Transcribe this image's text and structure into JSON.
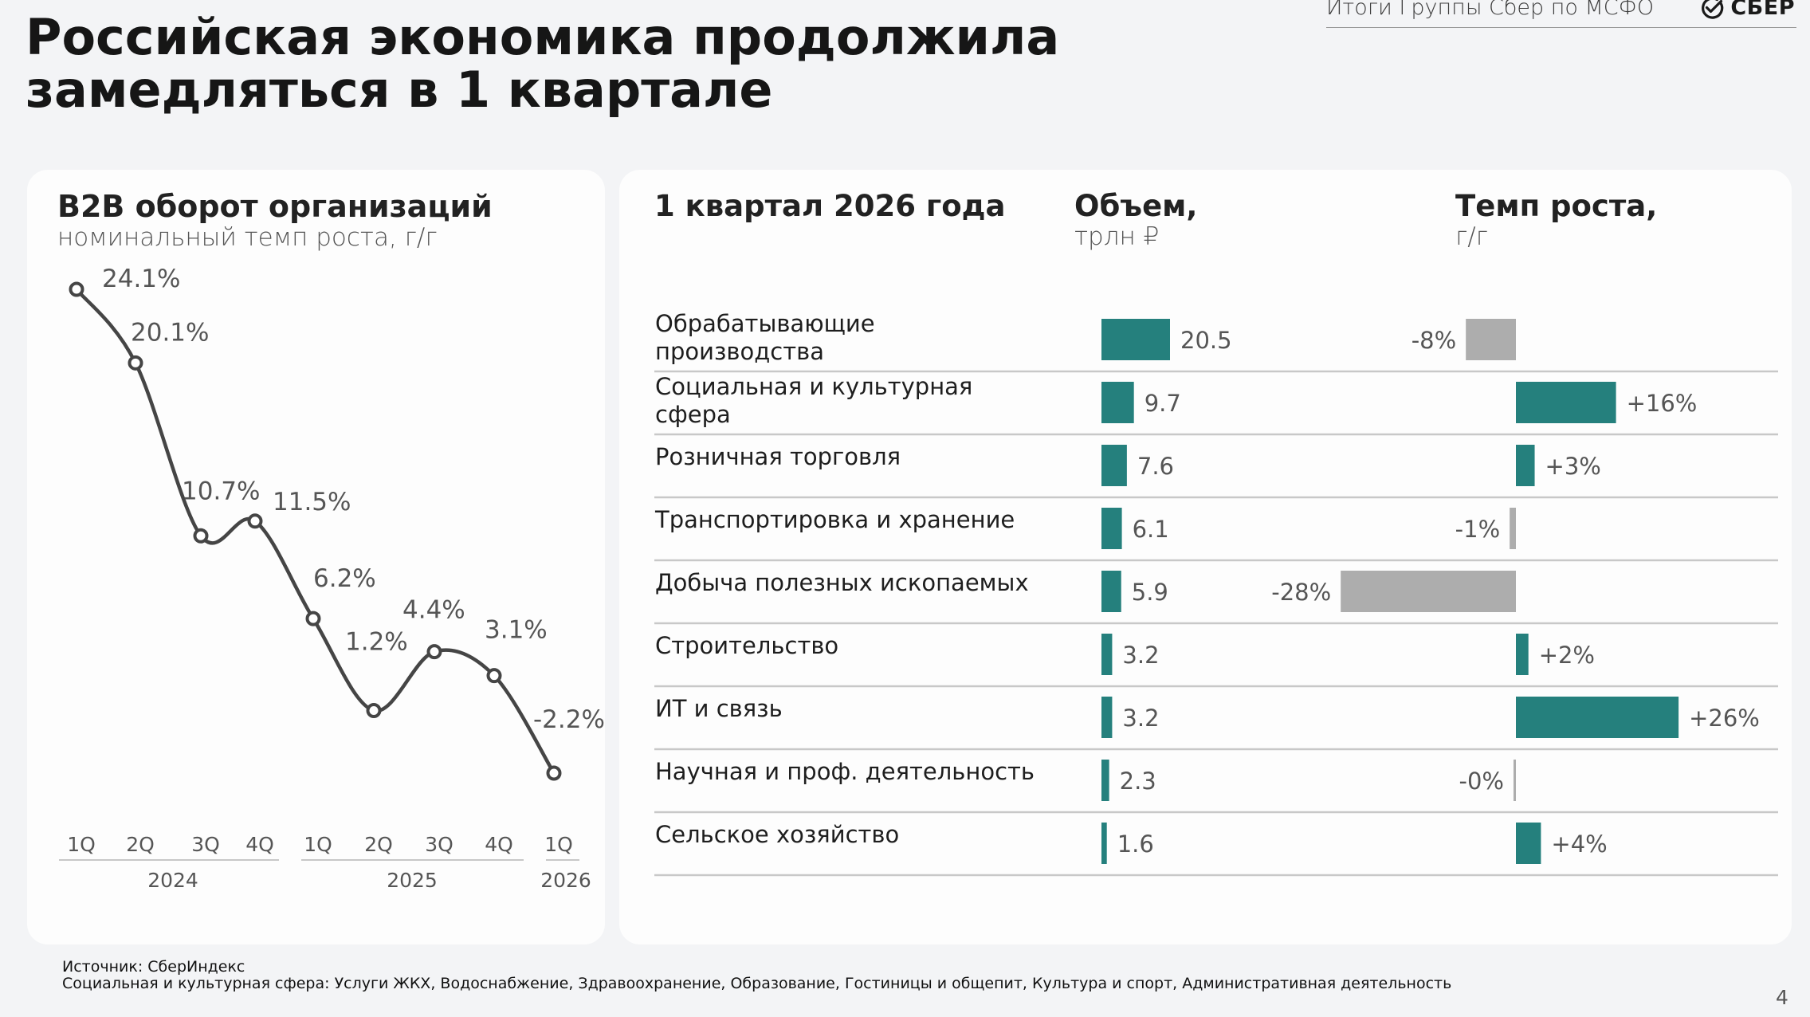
{
  "header": {
    "title_line1": "Российская экономика продолжила",
    "title_line2": "замедляться в 1 квартале",
    "report_label": "Итоги Группы Сбер по МСФО",
    "brand_name": "СБЕР"
  },
  "colors": {
    "teal": "#25807d",
    "gray_bar": "#adadad",
    "line": "#454545"
  },
  "chart_data": [
    {
      "type": "line",
      "title": "B2B оборот организаций",
      "subtitle": "номинальный темп роста, г/г",
      "x_quarters": [
        "1Q",
        "2Q",
        "3Q",
        "4Q",
        "1Q",
        "2Q",
        "3Q",
        "4Q",
        "1Q"
      ],
      "x_years": [
        "2024",
        "2025",
        "2026"
      ],
      "values": [
        24.1,
        20.1,
        10.7,
        11.5,
        6.2,
        1.2,
        4.4,
        3.1,
        -2.2
      ],
      "labels": [
        "24.1%",
        "20.1%",
        "10.7%",
        "11.5%",
        "6.2%",
        "1.2%",
        "4.4%",
        "3.1%",
        "-2.2%"
      ],
      "ylim": [
        -2.2,
        24.1
      ],
      "grid": false
    },
    {
      "type": "bar",
      "title": "1 квартал 2026 года",
      "orientation": "horizontal",
      "volume_header": "Объем,",
      "volume_unit": "трлн ₽",
      "growth_header": "Темп роста,",
      "growth_unit": "г/г",
      "categories": [
        "Обрабатывающие производства",
        "Социальная и культурная сфера",
        "Розничная торговля",
        "Транспортировка и хранение",
        "Добыча полезных ископаемых",
        "Строительство",
        "ИТ и связь",
        "Научная и проф. деятельность",
        "Сельское хозяйство"
      ],
      "category_lines": [
        [
          "Обрабатывающие",
          "производства"
        ],
        [
          "Социальная и культурная",
          "сфера"
        ],
        [
          "Розничная торговля"
        ],
        [
          "Транспортировка и хранение"
        ],
        [
          "Добыча полезных ископаемых"
        ],
        [
          "Строительство"
        ],
        [
          "ИТ и связь"
        ],
        [
          "Научная и проф. деятельность"
        ],
        [
          "Сельское хозяйство"
        ]
      ],
      "series": [
        {
          "name": "Объем, трлн ₽",
          "values": [
            20.5,
            9.7,
            7.6,
            6.1,
            5.9,
            3.2,
            3.2,
            2.3,
            1.6
          ],
          "labels": [
            "20.5",
            "9.7",
            "7.6",
            "6.1",
            "5.9",
            "3.2",
            "3.2",
            "2.3",
            "1.6"
          ]
        },
        {
          "name": "Темп роста, г/г",
          "values": [
            -8,
            16,
            3,
            -1,
            -28,
            2,
            26,
            -0.3,
            4
          ],
          "labels": [
            "-8%",
            "+16%",
            "+3%",
            "-1%",
            "-28%",
            "+2%",
            "+26%",
            "-0%",
            "+4%"
          ]
        }
      ]
    }
  ],
  "footnotes": {
    "source": "Источник: СберИндекс",
    "definition": "Социальная и культурная сфера: Услуги ЖКХ, Водоснабжение, Здравоохранение, Образование, Гостиницы и общепит, Культура и спорт, Административная деятельность"
  },
  "page_number": "4"
}
